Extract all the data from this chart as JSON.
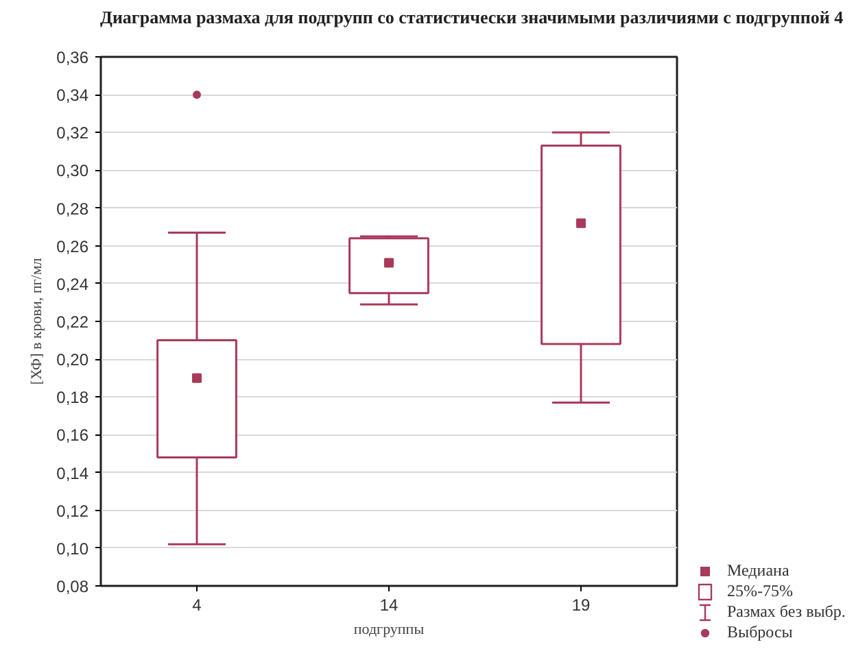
{
  "chart_data": {
    "type": "box",
    "title": "Диаграмма размаха для подгрупп со статистически значимыми различиями с подгруппой 4",
    "xlabel": "подгруппы",
    "ylabel": "[ХФ] в крови, пг/мл",
    "categories": [
      "4",
      "14",
      "19"
    ],
    "series": [
      {
        "color": "#a83a5a",
        "boxes": [
          {
            "low": 0.102,
            "q1": 0.148,
            "median": 0.19,
            "q3": 0.21,
            "high": 0.267,
            "outliers": [
              0.34
            ]
          },
          {
            "low": 0.229,
            "q1": 0.235,
            "median": 0.251,
            "q3": 0.264,
            "high": 0.265
          },
          {
            "low": 0.177,
            "q1": 0.208,
            "median": 0.272,
            "q3": 0.313,
            "high": 0.32
          }
        ]
      }
    ],
    "ylim": [
      0.08,
      0.36
    ],
    "yticks": [
      {
        "value": 0.08,
        "label": "0,08"
      },
      {
        "value": 0.1,
        "label": "0,10"
      },
      {
        "value": 0.12,
        "label": "0,12"
      },
      {
        "value": 0.14,
        "label": "0,14"
      },
      {
        "value": 0.16,
        "label": "0,16"
      },
      {
        "value": 0.18,
        "label": "0,18"
      },
      {
        "value": 0.2,
        "label": "0,20"
      },
      {
        "value": 0.22,
        "label": "0,22"
      },
      {
        "value": 0.24,
        "label": "0,24"
      },
      {
        "value": 0.26,
        "label": "0,26"
      },
      {
        "value": 0.28,
        "label": "0,28"
      },
      {
        "value": 0.3,
        "label": "0,30"
      },
      {
        "value": 0.32,
        "label": "0,32"
      },
      {
        "value": 0.34,
        "label": "0,34"
      },
      {
        "value": 0.36,
        "label": "0,36"
      }
    ],
    "grid": "y",
    "marker": "square",
    "annotations": [
      "Медиана",
      "25%-75%",
      "Размах без выбр.",
      "Выбросы"
    ]
  }
}
